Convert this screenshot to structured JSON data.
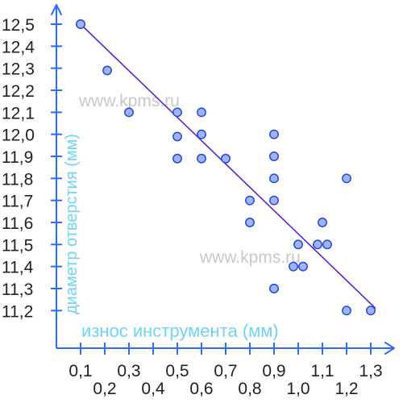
{
  "chart_data": {
    "type": "scatter",
    "title": "",
    "xlabel": "износ инструмента (мм)",
    "ylabel": "диаметр отверстия (мм)",
    "xlim": [
      0,
      1.35
    ],
    "ylim": [
      11.15,
      12.55
    ],
    "x_ticks": [
      "0,1",
      "0,2",
      "0,3",
      "0,4",
      "0,5",
      "0,6",
      "0,7",
      "0,8",
      "0,9",
      "1,0",
      "1,1",
      "1,2",
      "1,3"
    ],
    "y_ticks": [
      "11,2",
      "11,3",
      "11,4",
      "11,5",
      "11,6",
      "11,7",
      "11,8",
      "11,9",
      "12,0",
      "12,1",
      "12,2",
      "12,3",
      "12,4",
      "12,5"
    ],
    "grid": false,
    "legend": "none",
    "watermarks": [
      "www.kpms.ru",
      "www.kpms.ru"
    ],
    "colors": {
      "axis": "#2b6cff",
      "points_fill": "#9fb3ff",
      "points_stroke": "#2448d8",
      "trend_line": "#5f20d8",
      "axis_title": "#6fd4f5",
      "watermark": "#c8c8c8"
    },
    "series": [
      {
        "values": [
          {
            "x": 0.1,
            "y": 12.5
          },
          {
            "x": 0.21,
            "y": 12.29
          },
          {
            "x": 0.3,
            "y": 12.1
          },
          {
            "x": 0.5,
            "y": 12.1
          },
          {
            "x": 0.5,
            "y": 11.99
          },
          {
            "x": 0.5,
            "y": 11.89
          },
          {
            "x": 0.6,
            "y": 12.1
          },
          {
            "x": 0.6,
            "y": 12.0
          },
          {
            "x": 0.6,
            "y": 11.89
          },
          {
            "x": 0.7,
            "y": 11.89
          },
          {
            "x": 0.8,
            "y": 11.7
          },
          {
            "x": 0.8,
            "y": 11.6
          },
          {
            "x": 0.9,
            "y": 12.0
          },
          {
            "x": 0.9,
            "y": 11.9
          },
          {
            "x": 0.9,
            "y": 11.8
          },
          {
            "x": 0.9,
            "y": 11.7
          },
          {
            "x": 0.9,
            "y": 11.3
          },
          {
            "x": 1.0,
            "y": 11.5
          },
          {
            "x": 0.98,
            "y": 11.4
          },
          {
            "x": 1.02,
            "y": 11.4
          },
          {
            "x": 1.08,
            "y": 11.5
          },
          {
            "x": 1.12,
            "y": 11.5
          },
          {
            "x": 1.1,
            "y": 11.6
          },
          {
            "x": 1.2,
            "y": 11.8
          },
          {
            "x": 1.2,
            "y": 11.2
          },
          {
            "x": 1.3,
            "y": 11.2
          }
        ]
      }
    ],
    "trend_line": {
      "x1": 0.1,
      "y1": 12.5,
      "x2": 1.32,
      "y2": 11.21
    }
  }
}
